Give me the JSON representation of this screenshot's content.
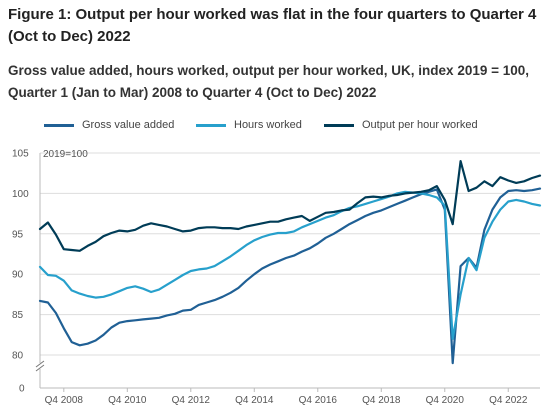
{
  "figure": {
    "title": "Figure 1: Output per hour worked was flat in the four quarters to Quarter 4 (Oct to Dec) 2022",
    "subtitle": "Gross value added, hours worked, output per hour worked, UK, index 2019 = 100, Quarter 1 (Jan to Mar) 2008 to Quarter 4 (Oct to Dec) 2022"
  },
  "chart_data": {
    "type": "line",
    "title": "Figure 1: Output per hour worked was flat in the four quarters to Quarter 4 (Oct to Dec) 2022",
    "subtitle": "Gross value added, hours worked, output per hour worked, UK, index 2019 = 100, Quarter 1 (Jan to Mar) 2008 to Quarter 4 (Oct to Dec) 2022",
    "ylabel": "2019=100",
    "xlabel": "",
    "ylim": [
      0,
      105
    ],
    "axis_break": [
      0,
      80
    ],
    "y_ticks": [
      80,
      85,
      90,
      95,
      100,
      105
    ],
    "y_ticks_below_break": [
      0
    ],
    "grid": true,
    "legend_position": "top",
    "x_tick_labels": [
      "Q4 2008",
      "Q4 2010",
      "Q4 2012",
      "Q4 2014",
      "Q4 2016",
      "Q4 2018",
      "Q4 2020",
      "Q4 2022"
    ],
    "x_tick_index": [
      3,
      11,
      19,
      27,
      35,
      43,
      51,
      59
    ],
    "series": [
      {
        "name": "Gross value added",
        "color": "#206095",
        "values": [
          86.7,
          86.5,
          85.2,
          83.3,
          81.6,
          81.2,
          81.4,
          81.8,
          82.5,
          83.4,
          84.0,
          84.2,
          84.3,
          84.4,
          84.5,
          84.6,
          84.9,
          85.1,
          85.5,
          85.6,
          86.2,
          86.5,
          86.8,
          87.2,
          87.7,
          88.3,
          89.2,
          90.0,
          90.7,
          91.2,
          91.6,
          92.0,
          92.3,
          92.8,
          93.2,
          93.8,
          94.5,
          95.0,
          95.6,
          96.2,
          96.7,
          97.2,
          97.6,
          97.9,
          98.3,
          98.7,
          99.1,
          99.5,
          99.9,
          100.2,
          100.5,
          98.0,
          79.0,
          91.0,
          92.0,
          90.8,
          95.5,
          98.0,
          99.5,
          100.3,
          100.4,
          100.3,
          100.4,
          100.6
        ]
      },
      {
        "name": "Hours worked",
        "color": "#27a0cc",
        "values": [
          90.9,
          89.9,
          89.8,
          89.2,
          88.0,
          87.6,
          87.3,
          87.1,
          87.2,
          87.5,
          87.9,
          88.3,
          88.5,
          88.2,
          87.8,
          88.1,
          88.7,
          89.3,
          89.9,
          90.4,
          90.6,
          90.7,
          91.0,
          91.6,
          92.2,
          92.9,
          93.6,
          94.2,
          94.6,
          94.9,
          95.1,
          95.1,
          95.3,
          95.8,
          96.2,
          96.6,
          97.0,
          97.3,
          97.8,
          98.2,
          98.4,
          98.7,
          99.0,
          99.3,
          99.6,
          100.0,
          100.2,
          100.1,
          100.0,
          99.8,
          99.5,
          98.5,
          82.0,
          87.5,
          92.0,
          90.5,
          94.5,
          96.5,
          98.0,
          99.0,
          99.2,
          99.0,
          98.7,
          98.5
        ]
      },
      {
        "name": "Output per hour worked",
        "color": "#003c57",
        "values": [
          95.6,
          96.4,
          94.9,
          93.1,
          93.0,
          92.9,
          93.5,
          94.0,
          94.7,
          95.1,
          95.4,
          95.3,
          95.5,
          96.0,
          96.3,
          96.1,
          95.9,
          95.6,
          95.3,
          95.4,
          95.7,
          95.8,
          95.8,
          95.7,
          95.7,
          95.6,
          95.9,
          96.1,
          96.3,
          96.5,
          96.5,
          96.8,
          97.0,
          97.2,
          96.6,
          97.1,
          97.6,
          97.7,
          97.9,
          98.0,
          98.8,
          99.5,
          99.6,
          99.5,
          99.7,
          99.8,
          100.0,
          100.1,
          100.2,
          100.4,
          100.9,
          99.2,
          96.2,
          104.0,
          100.3,
          100.7,
          101.5,
          100.9,
          102.0,
          101.6,
          101.3,
          101.5,
          101.9,
          102.2
        ]
      }
    ]
  }
}
